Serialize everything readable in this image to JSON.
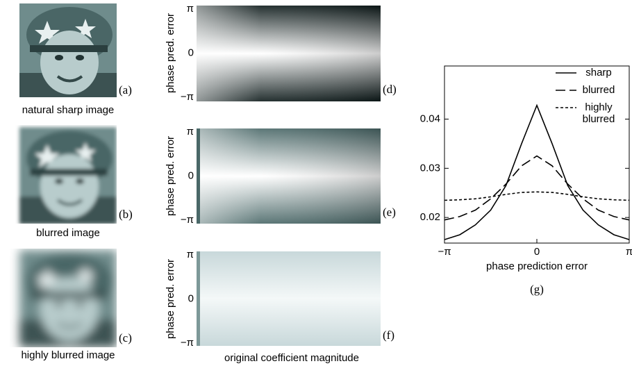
{
  "images": [
    {
      "caption": "natural sharp image",
      "label": "(a)"
    },
    {
      "caption": "blurred image",
      "label": "(b)"
    },
    {
      "caption": "highly blurred image",
      "label": "(c)"
    }
  ],
  "heatmaps": {
    "xlabel": "original coefficient magnitude",
    "panels": [
      {
        "ylabel": "phase pred. error",
        "ticks": [
          "π",
          "0",
          "−π"
        ],
        "label": "(d)"
      },
      {
        "ylabel": "phase pred. error",
        "ticks": [
          "π",
          "0",
          "−π"
        ],
        "label": "(e)"
      },
      {
        "ylabel": "phase pred. error",
        "ticks": [
          "π",
          "0",
          "−π"
        ],
        "label": "(f)"
      }
    ]
  },
  "chart_data": {
    "type": "line",
    "xlabel": "phase prediction error",
    "panel_label": "(g)",
    "x": [
      -3.14,
      -2.62,
      -2.09,
      -1.57,
      -1.05,
      -0.52,
      0,
      0.52,
      1.05,
      1.57,
      2.09,
      2.62,
      3.14
    ],
    "series": [
      {
        "name": "sharp",
        "color": "#000000",
        "dash": "none",
        "values": [
          0.0155,
          0.0165,
          0.0185,
          0.0215,
          0.0265,
          0.035,
          0.0428,
          0.035,
          0.0265,
          0.0215,
          0.0185,
          0.0165,
          0.0155
        ]
      },
      {
        "name": "blurred",
        "color": "#000000",
        "dash": "14 6",
        "values": [
          0.0195,
          0.0202,
          0.0215,
          0.0238,
          0.0268,
          0.0305,
          0.0325,
          0.0305,
          0.0268,
          0.0238,
          0.0215,
          0.0202,
          0.0195
        ]
      },
      {
        "name": "highly blurred",
        "color": "#000000",
        "dash": "4 3",
        "values": [
          0.0235,
          0.0236,
          0.0238,
          0.0242,
          0.0247,
          0.0251,
          0.0252,
          0.0251,
          0.0247,
          0.0242,
          0.0238,
          0.0236,
          0.0235
        ]
      }
    ],
    "xlim": [
      -3.1416,
      3.1416
    ],
    "xticks": [
      {
        "value": -3.1416,
        "label": "−π"
      },
      0,
      {
        "value": 3.1416,
        "label": "π"
      }
    ],
    "ylim": [
      0.0148,
      0.0508
    ],
    "yticks": [
      0.02,
      0.03,
      0.04
    ],
    "legend": "upper-right"
  }
}
